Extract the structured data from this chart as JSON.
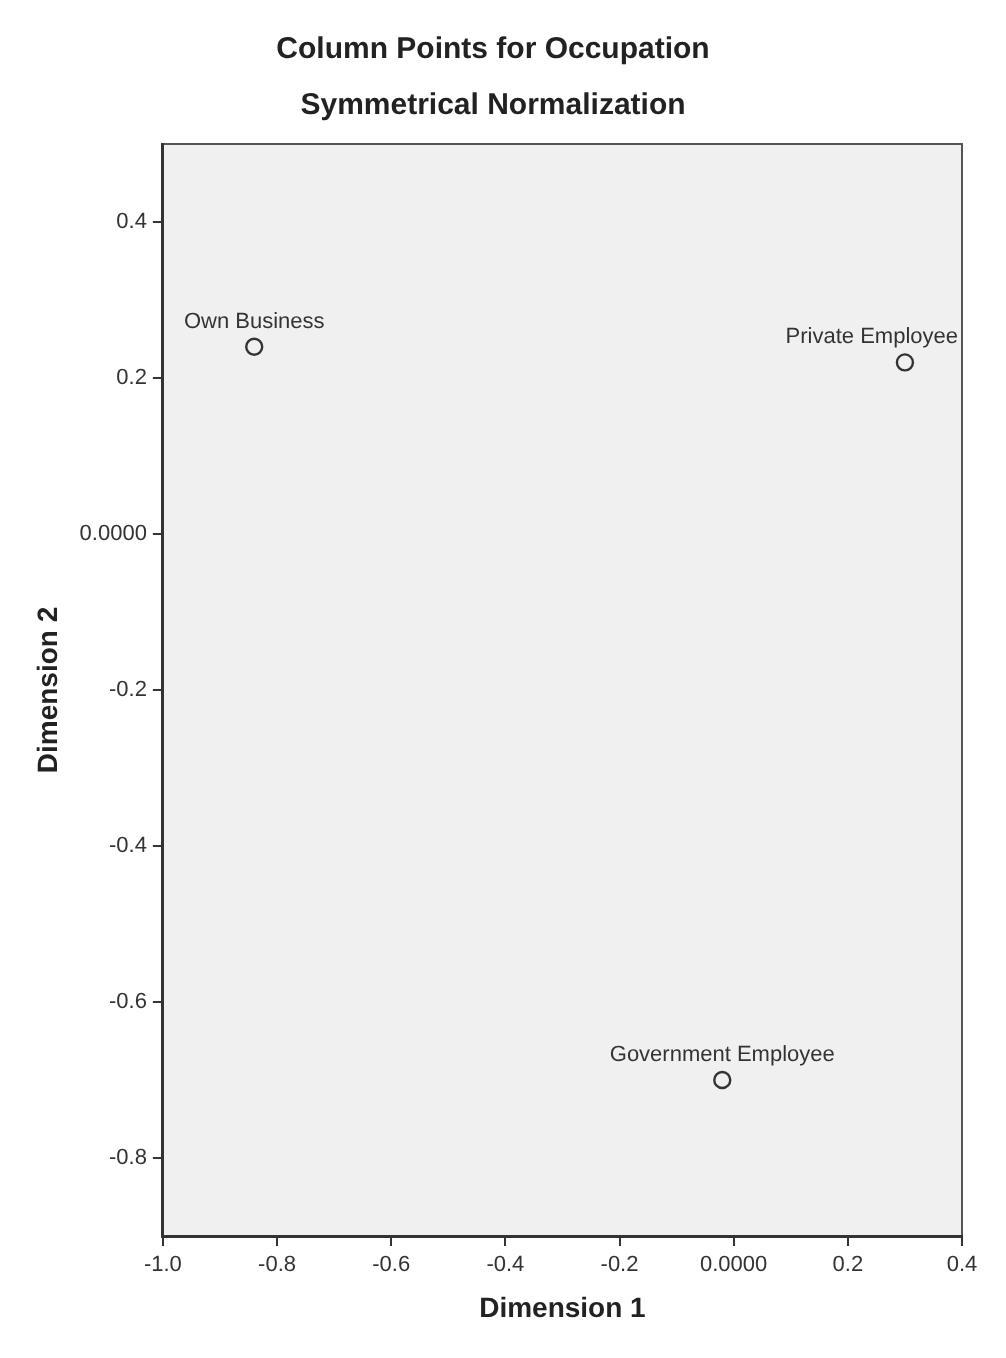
{
  "chart_data": {
    "type": "scatter",
    "title": "Column Points for Occupation",
    "subtitle": "Symmetrical Normalization",
    "xlabel": "Dimension 1",
    "ylabel": "Dimension 2",
    "series": [
      {
        "name": "Own Business",
        "color": "#333333",
        "x": [
          -0.84
        ],
        "values": [
          0.24
        ]
      },
      {
        "name": "Private Employee",
        "color": "#333333",
        "x": [
          0.3
        ],
        "values": [
          0.22
        ]
      },
      {
        "name": "Government Employee",
        "color": "#333333",
        "x": [
          -0.02
        ],
        "values": [
          -0.7
        ]
      }
    ],
    "xlim": [
      -1.0,
      0.4
    ],
    "xticks": [
      {
        "value": -1.0,
        "label": "-1.0"
      },
      -0.8,
      -0.6,
      -0.4,
      -0.2,
      {
        "value": 0,
        "label": "0.0000"
      },
      0.2,
      0.4
    ],
    "ylim": [
      -0.9,
      0.5
    ],
    "yticks": [
      -0.8,
      -0.6,
      -0.4,
      -0.2,
      {
        "value": 0,
        "label": "0.0000"
      },
      0.2,
      0.4
    ],
    "marker": "circle",
    "legend": false,
    "grid": false
  }
}
